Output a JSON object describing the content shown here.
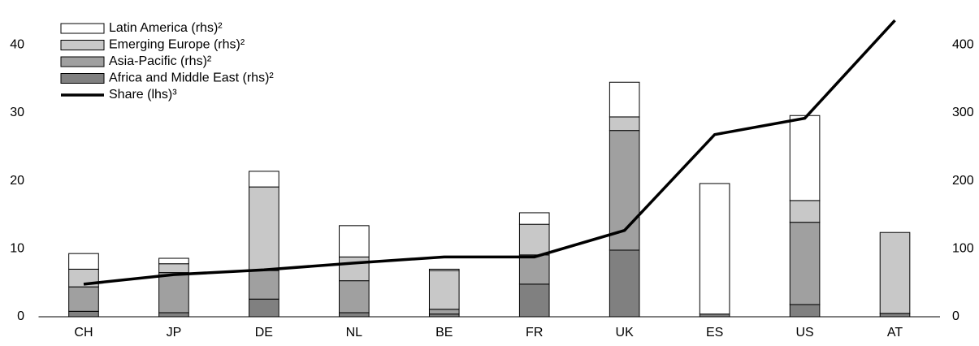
{
  "chart_data": {
    "type": "bar",
    "stacked": true,
    "categories": [
      "CH",
      "JP",
      "DE",
      "NL",
      "BE",
      "FR",
      "UK",
      "ES",
      "US",
      "AT"
    ],
    "series": [
      {
        "name": "Africa and Middle East (rhs)²",
        "color": "#808080",
        "axis": "y2",
        "values": [
          8,
          6,
          26,
          6,
          4,
          48,
          98,
          4,
          18,
          5
        ]
      },
      {
        "name": "Asia-Pacific (rhs)²",
        "color": "#a0a0a0",
        "axis": "y2",
        "values": [
          36,
          59,
          42,
          47,
          7,
          43,
          176,
          0,
          121,
          0
        ]
      },
      {
        "name": "Emerging Europe (rhs)²",
        "color": "#c8c8c8",
        "axis": "y2",
        "values": [
          26,
          13,
          123,
          35,
          57,
          45,
          20,
          0,
          32,
          119
        ]
      },
      {
        "name": "Latin America (rhs)²",
        "color": "#ffffff",
        "axis": "y2",
        "values": [
          23,
          8,
          23,
          46,
          2,
          17,
          51,
          192,
          125,
          0
        ]
      },
      {
        "name": "Share (lhs)³",
        "color": "#000000",
        "axis": "y",
        "type": "line",
        "values": [
          4.8,
          6.2,
          6.9,
          7.9,
          8.8,
          8.8,
          12.7,
          26.8,
          29.2,
          43.6
        ]
      }
    ],
    "ylim": [
      0,
      46
    ],
    "yticks": [
      0,
      10,
      20,
      30,
      40
    ],
    "y2lim": [
      0,
      460
    ],
    "y2ticks": [
      0,
      100,
      200,
      300,
      400
    ],
    "legend": "upper-left"
  }
}
